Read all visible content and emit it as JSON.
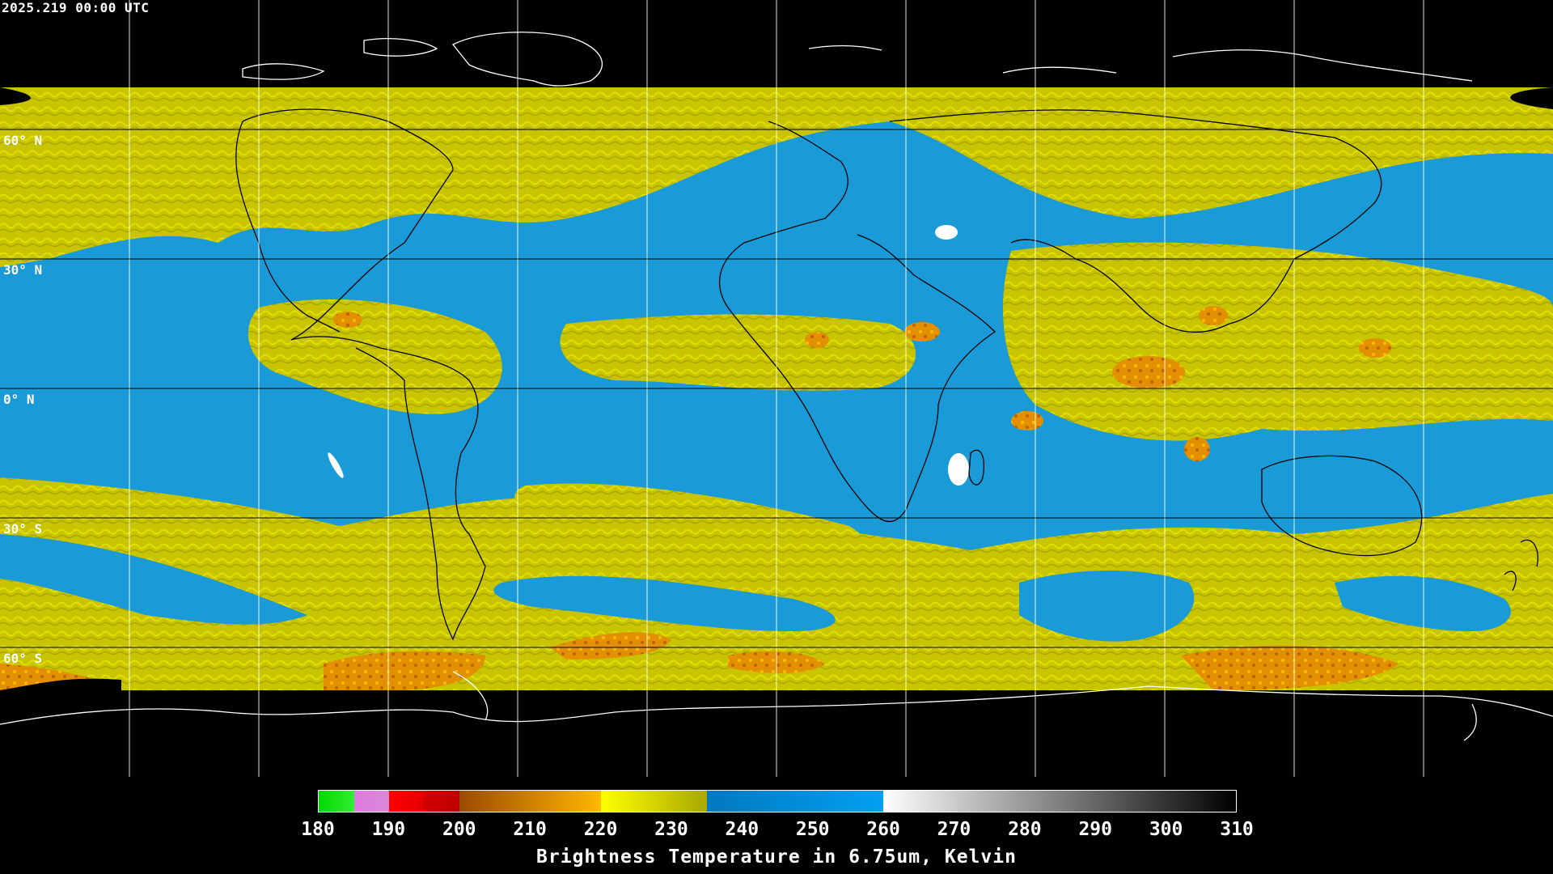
{
  "timestamp": "2025.219 00:00 UTC",
  "lat_labels": [
    {
      "label": "60° N",
      "lat": 60
    },
    {
      "label": "30° N",
      "lat": 30
    },
    {
      "label": "0° N",
      "lat": 0
    },
    {
      "label": "30° S",
      "lat": -30
    },
    {
      "label": "60° S",
      "lat": -60
    }
  ],
  "colorbar": {
    "title": "Brightness Temperature in 6.75um, Kelvin",
    "ticks": [
      "180",
      "190",
      "200",
      "210",
      "220",
      "230",
      "240",
      "250",
      "260",
      "270",
      "280",
      "290",
      "300",
      "310"
    ],
    "range": [
      180,
      310
    ],
    "segments": [
      {
        "from": 180,
        "to": 185,
        "colors": [
          "#00d800",
          "#33ee33"
        ]
      },
      {
        "from": 185,
        "to": 190,
        "colors": [
          "#e07ae0",
          "#d88ad8"
        ]
      },
      {
        "from": 190,
        "to": 195,
        "colors": [
          "#ff0000",
          "#e00000"
        ]
      },
      {
        "from": 195,
        "to": 200,
        "colors": [
          "#d00000",
          "#c00000"
        ]
      },
      {
        "from": 200,
        "to": 220,
        "colors": [
          "#9a4a00",
          "#ffb800"
        ]
      },
      {
        "from": 220,
        "to": 235,
        "colors": [
          "#ffff00",
          "#a8a800"
        ]
      },
      {
        "from": 235,
        "to": 260,
        "colors": [
          "#0078c0",
          "#00a0f0"
        ]
      },
      {
        "from": 260,
        "to": 310,
        "colors": [
          "#ffffff",
          "#000000"
        ]
      }
    ]
  },
  "colors": {
    "background": "#000000",
    "water_vapor_dry": "#1a9ad6",
    "water_vapor_moist": "#c8c400",
    "water_vapor_cold": "#e69500",
    "grid": "#ffffff",
    "coastline": "#000000"
  }
}
